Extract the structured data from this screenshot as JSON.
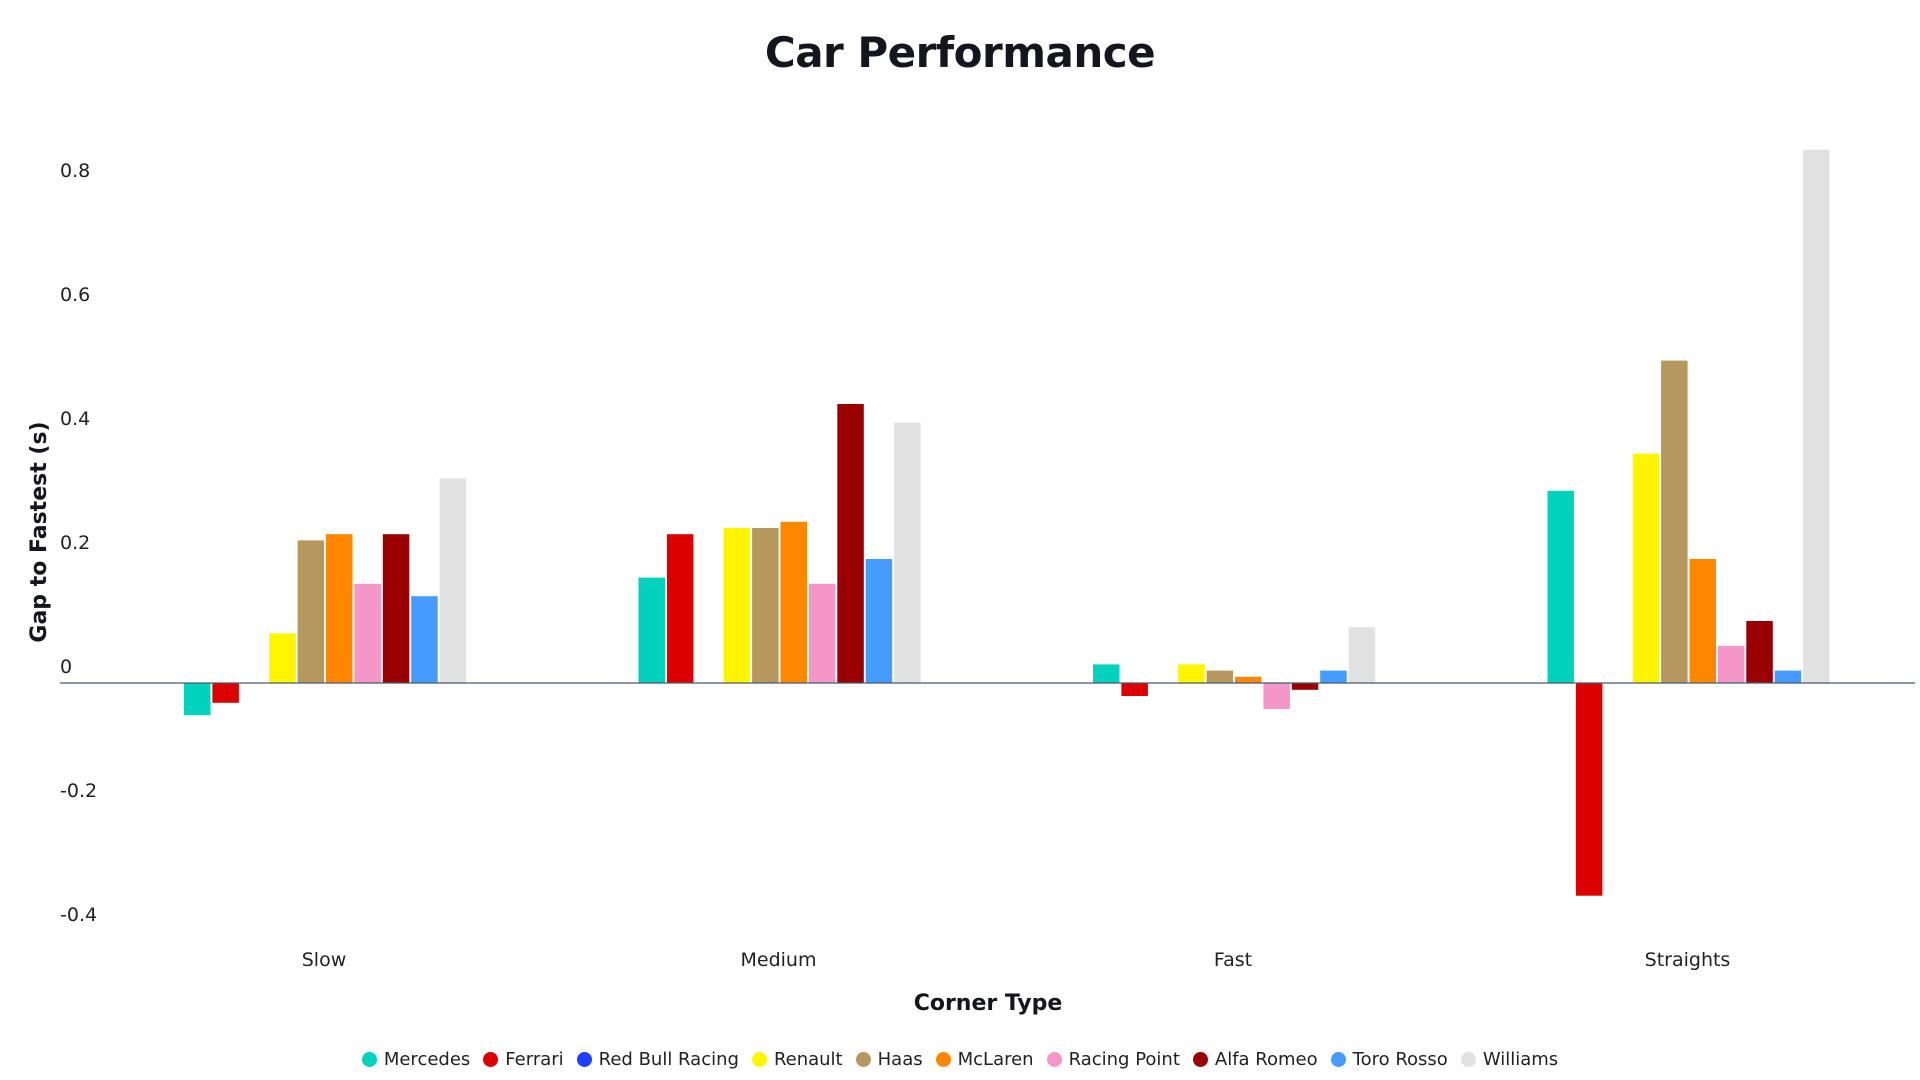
{
  "chart_data": {
    "type": "bar",
    "title": "Car Performance",
    "xlabel": "Corner Type",
    "ylabel": "Gap to Fastest (s)",
    "ylim": [
      -0.4,
      0.85
    ],
    "yticks": [
      {
        "value": 0.8,
        "label": "0.8"
      },
      {
        "value": 0.6,
        "label": "0.6"
      },
      {
        "value": 0.4,
        "label": "0.4"
      },
      {
        "value": 0.2,
        "label": "0.2"
      },
      {
        "value": 0,
        "label": "0"
      },
      {
        "value": -0.2,
        "label": "-0.2"
      },
      {
        "value": -0.4,
        "label": "-0.4"
      }
    ],
    "grid": false,
    "legend_position": "bottom",
    "categories": [
      "Slow",
      "Medium",
      "Fast",
      "Straights"
    ],
    "series": [
      {
        "name": "Mercedes",
        "color": "#00d2be",
        "values": [
          -0.052,
          0.17,
          0.03,
          0.31
        ]
      },
      {
        "name": "Ferrari",
        "color": "#dc0000",
        "values": [
          -0.032,
          0.24,
          -0.021,
          -0.343
        ]
      },
      {
        "name": "Red Bull Racing",
        "color": "#1e41ff",
        "values": [
          0,
          0,
          0,
          0
        ]
      },
      {
        "name": "Renault",
        "color": "#fff500",
        "values": [
          0.08,
          0.25,
          0.03,
          0.37
        ]
      },
      {
        "name": "Haas",
        "color": "#b6985f",
        "values": [
          0.23,
          0.25,
          0.02,
          0.52
        ]
      },
      {
        "name": "McLaren",
        "color": "#ff8700",
        "values": [
          0.24,
          0.26,
          0.01,
          0.2
        ]
      },
      {
        "name": "Racing Point",
        "color": "#f596c8",
        "values": [
          0.16,
          0.16,
          -0.042,
          0.06
        ]
      },
      {
        "name": "Alfa Romeo",
        "color": "#9b0000",
        "values": [
          0.24,
          0.45,
          -0.011,
          0.1
        ]
      },
      {
        "name": "Toro Rosso",
        "color": "#469bff",
        "values": [
          0.14,
          0.2,
          0.02,
          0.02
        ]
      },
      {
        "name": "Williams",
        "color": "#e1e1e1",
        "values": [
          0.33,
          0.42,
          0.09,
          0.86
        ]
      }
    ]
  }
}
